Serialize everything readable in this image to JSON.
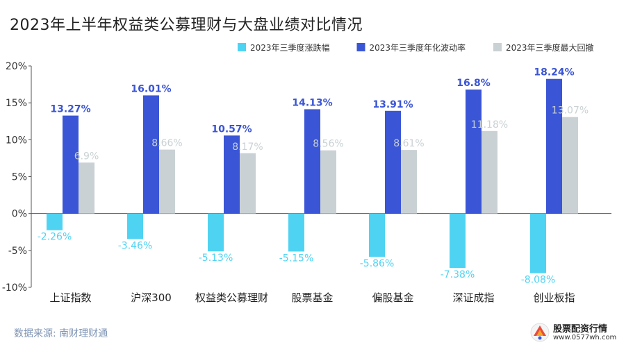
{
  "chart_data": {
    "type": "bar",
    "title": "2023年上半年权益类公募理财与大盘业绩对比情况",
    "categories": [
      "上证指数",
      "沪深300",
      "权益类公募理财",
      "股票基金",
      "偏股基金",
      "深证成指",
      "创业板指"
    ],
    "series": [
      {
        "name": "2023年三季度涨跌幅",
        "color": "#4fd3f2",
        "values": [
          -2.26,
          -3.46,
          -5.13,
          -5.15,
          -5.86,
          -7.38,
          -8.08
        ]
      },
      {
        "name": "2023年三季度年化波动率",
        "color": "#3a55d6",
        "values": [
          13.27,
          16.01,
          10.57,
          14.13,
          13.91,
          16.8,
          18.24
        ]
      },
      {
        "name": "2023年三季度最大回撤",
        "color": "#c9d1d4",
        "values": [
          6.9,
          8.66,
          8.17,
          8.56,
          8.61,
          11.18,
          13.07
        ]
      }
    ],
    "data_labels": [
      [
        "-2.26%",
        "-3.46%",
        "-5.13%",
        "-5.15%",
        "-5.86%",
        "-7.38%",
        "-8.08%"
      ],
      [
        "13.27%",
        "16.01%",
        "10.57%",
        "14.13%",
        "13.91%",
        "16.8%",
        "18.24%"
      ],
      [
        "6.9%",
        "8.66%",
        "8.17%",
        "8.56%",
        "8.61%",
        "11.18%",
        "13.07%"
      ]
    ],
    "ylim": [
      -10,
      20
    ],
    "yticks": [
      20,
      15,
      10,
      5,
      0,
      -5,
      -10
    ],
    "ytick_labels": [
      "20%",
      "15%",
      "10%",
      "5%",
      "0%",
      "-5%",
      "-10%"
    ],
    "legend_position": "top-right",
    "grid": false
  },
  "source": "数据来源: 南财理财通",
  "logo": {
    "name": "股票配资行情",
    "url": "www.0577wh.com"
  }
}
